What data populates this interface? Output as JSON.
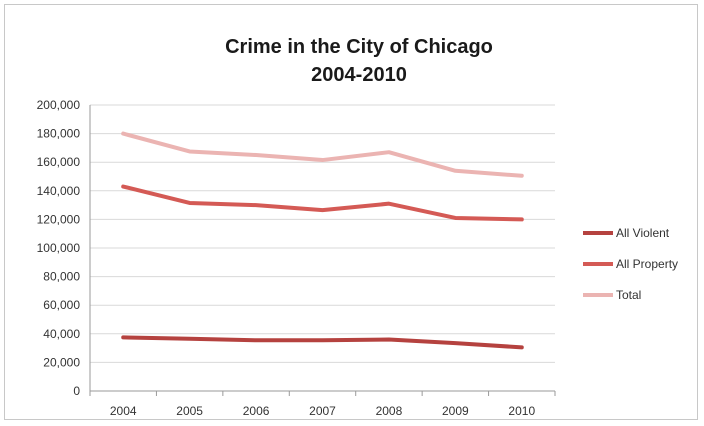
{
  "chart_data": {
    "type": "line",
    "title": "Crime in the City of Chicago",
    "subtitle": "2004-2010",
    "xlabel": "",
    "ylabel": "",
    "categories": [
      "2004",
      "2005",
      "2006",
      "2007",
      "2008",
      "2009",
      "2010"
    ],
    "ylim": [
      0,
      200000
    ],
    "yticks": [
      "200,000",
      "180,000",
      "160,000",
      "140,000",
      "120,000",
      "100,000",
      "80,000",
      "60,000",
      "40,000",
      "20,000",
      "0"
    ],
    "ytick_values": [
      200000,
      180000,
      160000,
      140000,
      120000,
      100000,
      80000,
      60000,
      40000,
      20000,
      0
    ],
    "grid": true,
    "legend_position": "right",
    "series": [
      {
        "name": "All Violent",
        "color": "#b5423f",
        "values": [
          37500,
          36500,
          35500,
          35500,
          36000,
          33500,
          30500
        ]
      },
      {
        "name": "All Property",
        "color": "#d45a55",
        "values": [
          143000,
          131500,
          130000,
          126500,
          131000,
          121000,
          120000
        ]
      },
      {
        "name": "Total",
        "color": "#ebb4b2",
        "values": [
          180000,
          167500,
          165000,
          161500,
          167000,
          154000,
          150500
        ]
      }
    ]
  }
}
